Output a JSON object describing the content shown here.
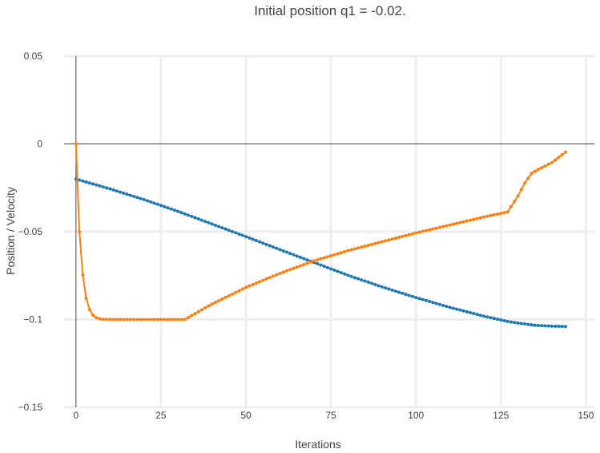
{
  "chart_data": {
    "type": "line",
    "title": "Initial position q1 = -0.02.",
    "xlabel": "Iterations",
    "ylabel": "Position / Velocity",
    "xlim": [
      -3.5,
      152.5
    ],
    "ylim": [
      -0.15,
      0.05
    ],
    "x_ticks": [
      0,
      25,
      50,
      75,
      100,
      125,
      150
    ],
    "x_tick_labels": [
      "0",
      "25",
      "50",
      "75",
      "100",
      "125",
      "150"
    ],
    "y_ticks": [
      0.05,
      0,
      -0.05,
      -0.1,
      -0.15
    ],
    "y_tick_labels": [
      "0.05",
      "0",
      "−0.05",
      "−0.1",
      "−0.15"
    ],
    "grid": true,
    "legend": "none",
    "colors": {
      "position": "#1f77b4",
      "velocity": "#ff7f0e",
      "grid": "#eeeeee",
      "zeroline": "#444444"
    },
    "series": [
      {
        "key": "position",
        "color": "#1f77b4",
        "points": [
          [
            0,
            -0.02
          ],
          [
            10,
            -0.0256
          ],
          [
            20,
            -0.0317
          ],
          [
            30,
            -0.0384
          ],
          [
            40,
            -0.0456
          ],
          [
            50,
            -0.0528
          ],
          [
            60,
            -0.0602
          ],
          [
            70,
            -0.0675
          ],
          [
            80,
            -0.0748
          ],
          [
            90,
            -0.0814
          ],
          [
            100,
            -0.0875
          ],
          [
            110,
            -0.0931
          ],
          [
            120,
            -0.0981
          ],
          [
            127,
            -0.1011
          ],
          [
            130,
            -0.102
          ],
          [
            135,
            -0.1033
          ],
          [
            140,
            -0.1038
          ],
          [
            144,
            -0.104
          ]
        ]
      },
      {
        "key": "velocity",
        "color": "#ff7f0e",
        "points": [
          [
            0,
            0
          ],
          [
            1,
            -0.05
          ],
          [
            2,
            -0.0745
          ],
          [
            3,
            -0.088
          ],
          [
            4,
            -0.0944
          ],
          [
            5,
            -0.0975
          ],
          [
            6,
            -0.099
          ],
          [
            7,
            -0.0996
          ],
          [
            8,
            -0.0999
          ],
          [
            10,
            -0.1
          ],
          [
            20,
            -0.1
          ],
          [
            32,
            -0.1
          ],
          [
            40,
            -0.0912
          ],
          [
            50,
            -0.0817
          ],
          [
            60,
            -0.0737
          ],
          [
            70,
            -0.0666
          ],
          [
            80,
            -0.0608
          ],
          [
            90,
            -0.0557
          ],
          [
            100,
            -0.0507
          ],
          [
            110,
            -0.0462
          ],
          [
            120,
            -0.0416
          ],
          [
            127,
            -0.0387
          ],
          [
            130,
            -0.0297
          ],
          [
            132,
            -0.0223
          ],
          [
            134,
            -0.0168
          ],
          [
            136,
            -0.0145
          ],
          [
            140,
            -0.0106
          ],
          [
            144,
            -0.0047
          ]
        ]
      }
    ]
  }
}
